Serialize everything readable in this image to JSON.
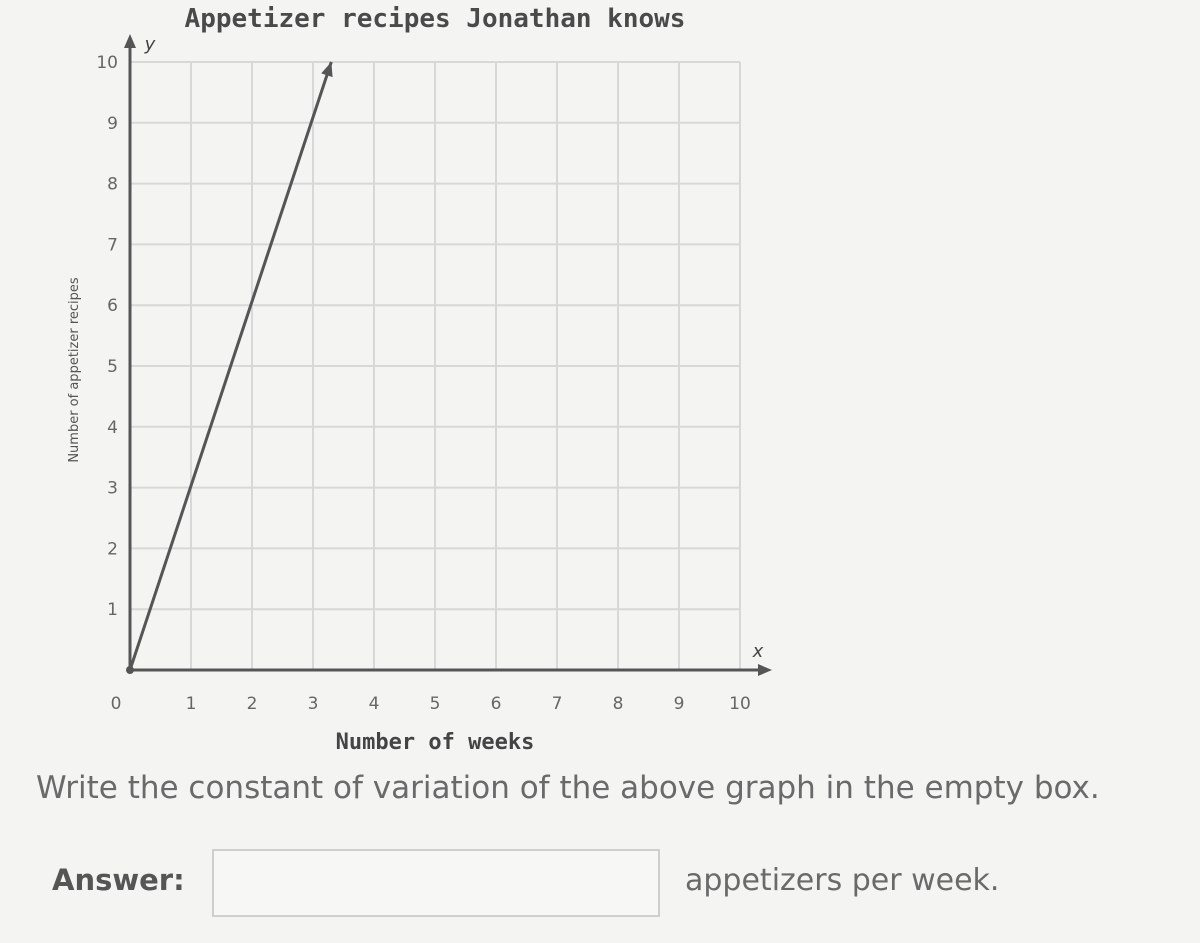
{
  "chart_data": {
    "type": "line",
    "title": "Appetizer recipes Jonathan knows",
    "xlabel": "Number of weeks",
    "ylabel": "Number of appetizer recipes",
    "x_axis_letter": "x",
    "y_axis_letter": "y",
    "xlim": [
      0,
      10
    ],
    "ylim": [
      0,
      10
    ],
    "x_ticks": [
      "0",
      "1",
      "2",
      "3",
      "4",
      "5",
      "6",
      "7",
      "8",
      "9",
      "10"
    ],
    "y_ticks": [
      "1",
      "2",
      "3",
      "4",
      "5",
      "6",
      "7",
      "8",
      "9",
      "10"
    ],
    "grid": true,
    "series": [
      {
        "x": [
          0,
          3.3
        ],
        "y": [
          0,
          10
        ],
        "color": "#555555"
      }
    ]
  },
  "question": {
    "prompt": "Write the constant of variation of the above graph in the empty box.",
    "answer_label": "Answer:",
    "answer_value": "",
    "unit": "appetizers per week."
  }
}
